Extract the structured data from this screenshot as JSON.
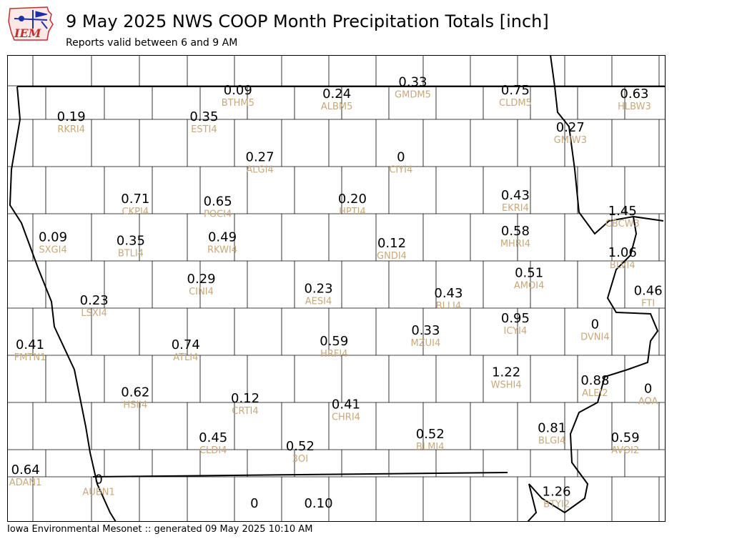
{
  "header": {
    "logo_text": "IEM",
    "title": "9 May 2025 NWS COOP Month Precipitation Totals [inch]",
    "subtitle": "Reports valid between 6 and 9 AM"
  },
  "footer": {
    "text": "Iowa Environmental Mesonet :: generated 09 May 2025 10:10 AM"
  },
  "colors": {
    "value_text": "#000000",
    "station_id_text": "#c8a87a",
    "county_lines": "#000000",
    "state_border": "#000000"
  },
  "stations": [
    {
      "id": "BTHM5",
      "value": "0.09",
      "lon": -94.45,
      "lat": 43.64
    },
    {
      "id": "ALBM5",
      "value": "0.24",
      "lon": -93.37,
      "lat": 43.61
    },
    {
      "id": "GMDM5",
      "value": "0.33",
      "lon": -92.54,
      "lat": 43.71
    },
    {
      "id": "CLDM5",
      "value": "0.75",
      "lon": -91.42,
      "lat": 43.64
    },
    {
      "id": "HLBW3",
      "value": "0.63",
      "lon": -90.12,
      "lat": 43.61
    },
    {
      "id": "RKRI4",
      "value": "0.19",
      "lon": -96.27,
      "lat": 43.42
    },
    {
      "id": "ESTI4",
      "value": "0.35",
      "lon": -94.82,
      "lat": 43.42
    },
    {
      "id": "GMIW3",
      "value": "0.27",
      "lon": -90.82,
      "lat": 43.33
    },
    {
      "id": "ALGI4",
      "value": "0.27",
      "lon": -94.21,
      "lat": 43.08
    },
    {
      "id": "CIYI4",
      "value": "0",
      "lon": -92.67,
      "lat": 43.08
    },
    {
      "id": "CKPI4",
      "value": "0.71",
      "lon": -95.57,
      "lat": 42.73
    },
    {
      "id": "POCI4",
      "value": "0.65",
      "lon": -94.67,
      "lat": 42.71
    },
    {
      "id": "HPTI4",
      "value": "0.20",
      "lon": -93.2,
      "lat": 42.73
    },
    {
      "id": "EKRI4",
      "value": "0.43",
      "lon": -91.42,
      "lat": 42.76
    },
    {
      "id": "CBCW3",
      "value": "1.45",
      "lon": -90.25,
      "lat": 42.63
    },
    {
      "id": "SXGI4",
      "value": "0.09",
      "lon": -96.47,
      "lat": 42.41
    },
    {
      "id": "BTLI4",
      "value": "0.35",
      "lon": -95.62,
      "lat": 42.38
    },
    {
      "id": "RKWI4",
      "value": "0.49",
      "lon": -94.62,
      "lat": 42.41
    },
    {
      "id": "GNDI4",
      "value": "0.12",
      "lon": -92.77,
      "lat": 42.36
    },
    {
      "id": "MHRI4",
      "value": "0.58",
      "lon": -91.42,
      "lat": 42.46
    },
    {
      "id": "BLVI4",
      "value": "1.06",
      "lon": -90.25,
      "lat": 42.28
    },
    {
      "id": "CINI4",
      "value": "0.29",
      "lon": -94.85,
      "lat": 42.06
    },
    {
      "id": "AMOI4",
      "value": "0.51",
      "lon": -91.27,
      "lat": 42.11
    },
    {
      "id": "AESI4",
      "value": "0.23",
      "lon": -93.57,
      "lat": 41.98
    },
    {
      "id": "BLLI4",
      "value": "0.43",
      "lon": -92.15,
      "lat": 41.94
    },
    {
      "id": "FTI",
      "value": "0.46",
      "lon": -89.97,
      "lat": 41.96
    },
    {
      "id": "LSXI4",
      "value": "0.23",
      "lon": -96.02,
      "lat": 41.88
    },
    {
      "id": "ICYI4",
      "value": "0.95",
      "lon": -91.42,
      "lat": 41.73
    },
    {
      "id": "DVNI4",
      "value": "0",
      "lon": -90.55,
      "lat": 41.68
    },
    {
      "id": "MZUI4",
      "value": "0.33",
      "lon": -92.4,
      "lat": 41.63
    },
    {
      "id": "HRFI4",
      "value": "0.59",
      "lon": -93.4,
      "lat": 41.54
    },
    {
      "id": "ATLI4",
      "value": "0.74",
      "lon": -95.02,
      "lat": 41.51
    },
    {
      "id": "FMTN1",
      "value": "0.41",
      "lon": -96.72,
      "lat": 41.51
    },
    {
      "id": "WSHI4",
      "value": "1.22",
      "lon": -91.52,
      "lat": 41.28
    },
    {
      "id": "ALEI2",
      "value": "0.88",
      "lon": -90.55,
      "lat": 41.21
    },
    {
      "id": "AOA",
      "value": "0",
      "lon": -89.97,
      "lat": 41.14
    },
    {
      "id": "HSII4",
      "value": "0.62",
      "lon": -95.57,
      "lat": 41.11
    },
    {
      "id": "CRTI4",
      "value": "0.12",
      "lon": -94.37,
      "lat": 41.06
    },
    {
      "id": "CHRI4",
      "value": "0.41",
      "lon": -93.27,
      "lat": 41.01
    },
    {
      "id": "BLGI4",
      "value": "0.81",
      "lon": -91.02,
      "lat": 40.81
    },
    {
      "id": "BLMI4",
      "value": "0.52",
      "lon": -92.35,
      "lat": 40.76
    },
    {
      "id": "AVOI2",
      "value": "0.59",
      "lon": -90.22,
      "lat": 40.73
    },
    {
      "id": "CLDI4",
      "value": "0.45",
      "lon": -94.72,
      "lat": 40.73
    },
    {
      "id": "3OI",
      "value": "0.52",
      "lon": -93.77,
      "lat": 40.66
    },
    {
      "id": "ADAN1",
      "value": "0.64",
      "lon": -96.77,
      "lat": 40.46
    },
    {
      "id": "AUBN1",
      "value": "0",
      "lon": -95.97,
      "lat": 40.38
    },
    {
      "id": "BTYI2",
      "value": "1.26",
      "lon": -90.97,
      "lat": 40.28
    },
    {
      "id": "",
      "value": "0",
      "lon": -94.27,
      "lat": 40.18
    },
    {
      "id": "",
      "value": "0.10",
      "lon": -93.57,
      "lat": 40.18
    }
  ]
}
